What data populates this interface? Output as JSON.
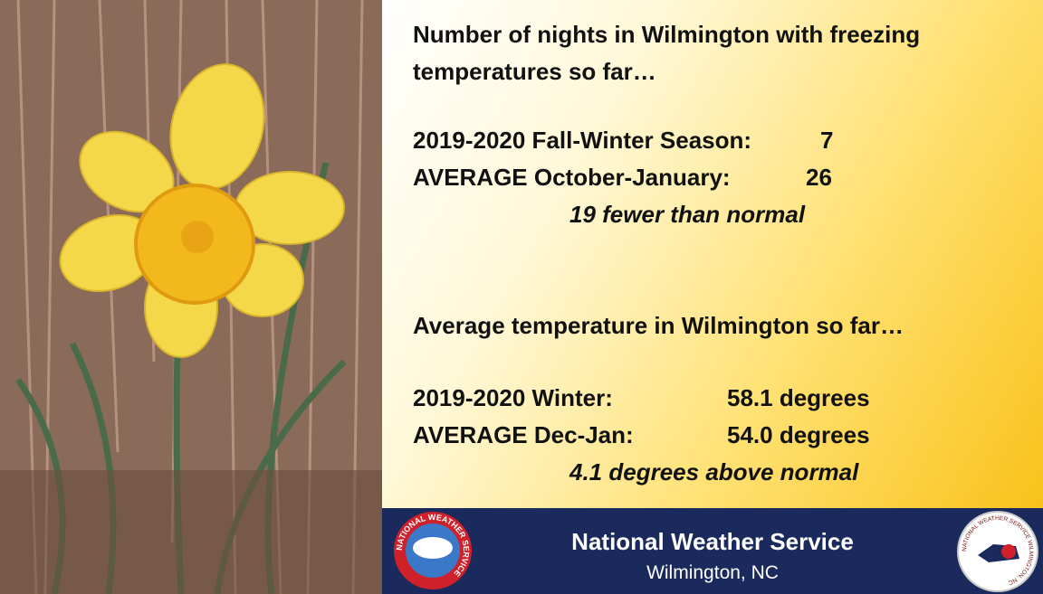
{
  "freeze": {
    "heading": "Number of nights in Wilmington with freezing temperatures so far…",
    "rows": [
      {
        "label": "2019-2020 Fall-Winter Season:",
        "value": "7"
      },
      {
        "label": "AVERAGE October-January:",
        "value": "26"
      }
    ],
    "note": "19 fewer than normal"
  },
  "temperature": {
    "heading": "Average temperature in Wilmington so far…",
    "rows": [
      {
        "label": "2019-2020 Winter:",
        "value": "58.1 degrees"
      },
      {
        "label": "AVERAGE Dec-Jan:",
        "value": "54.0 degrees"
      }
    ],
    "note": "4.1 degrees above normal"
  },
  "footer": {
    "title": "National Weather Service",
    "subtitle": "Wilmington, NC",
    "left_logo": "NATIONAL WEATHER SERVICE",
    "right_logo": "NATIONAL WEATHER SERVICE WILMINGTON, NC"
  }
}
